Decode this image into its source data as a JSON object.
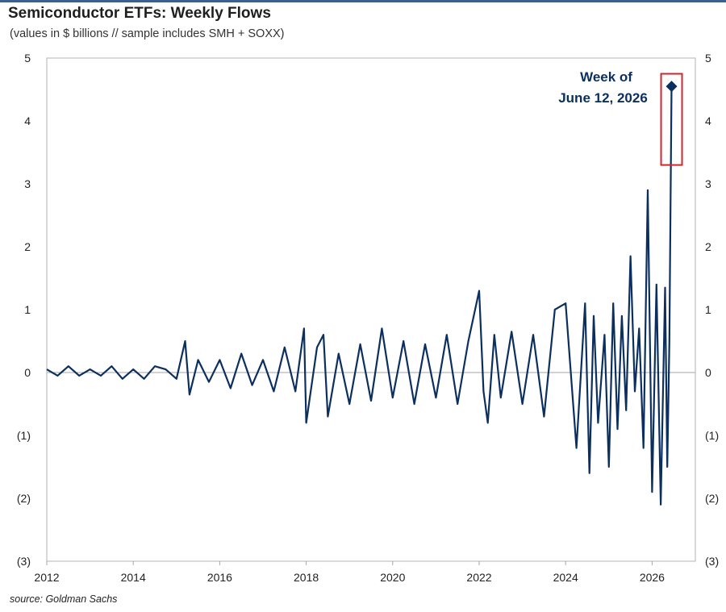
{
  "header": {
    "title": "Semiconductor ETFs: Weekly Flows",
    "subtitle": "(values in $ billions // sample includes SMH + SOXX)"
  },
  "footer": {
    "source": "source: Goldman Sachs"
  },
  "colors": {
    "line": "#0b2f5e",
    "highlight_box": "#d0262c",
    "axis": "#a6a6a6",
    "frame": "#b3b3b3",
    "top_rule": "#3b5f8f"
  },
  "chart_data": {
    "type": "line",
    "title": "Semiconductor ETFs: Weekly Flows",
    "subtitle": "(values in $ billions // sample includes SMH + SOXX)",
    "xlabel": "",
    "ylabel": "",
    "xlim": [
      2012,
      2027
    ],
    "ylim": [
      -3,
      5
    ],
    "x_ticks": [
      2012,
      2014,
      2016,
      2018,
      2020,
      2022,
      2024,
      2026
    ],
    "y_ticks": [
      5,
      4,
      3,
      2,
      1,
      0,
      -1,
      -2,
      -3
    ],
    "y_tick_labels": [
      "5",
      "4",
      "3",
      "2",
      "1",
      "0",
      "(1)",
      "(2)",
      "(3)"
    ],
    "grid": false,
    "zero_line": true,
    "dual_y_axis_labels": true,
    "series": [
      {
        "x": [
          2012.0,
          2012.25,
          2012.5,
          2012.75,
          2013.0,
          2013.25,
          2013.5,
          2013.75,
          2014.0,
          2014.25,
          2014.5,
          2014.75,
          2015.0,
          2015.2,
          2015.3,
          2015.5,
          2015.75,
          2016.0,
          2016.25,
          2016.5,
          2016.75,
          2017.0,
          2017.25,
          2017.5,
          2017.75,
          2017.95,
          2018.0,
          2018.25,
          2018.4,
          2018.5,
          2018.75,
          2019.0,
          2019.25,
          2019.5,
          2019.75,
          2020.0,
          2020.25,
          2020.5,
          2020.75,
          2021.0,
          2021.25,
          2021.5,
          2021.75,
          2022.0,
          2022.1,
          2022.2,
          2022.35,
          2022.5,
          2022.75,
          2023.0,
          2023.25,
          2023.5,
          2023.75,
          2024.0,
          2024.25,
          2024.45,
          2024.55,
          2024.65,
          2024.75,
          2024.9,
          2025.0,
          2025.1,
          2025.2,
          2025.3,
          2025.4,
          2025.5,
          2025.6,
          2025.7,
          2025.8,
          2025.9,
          2026.0,
          2026.1,
          2026.2,
          2026.3,
          2026.35,
          2026.4,
          2026.45
        ],
        "values": [
          0.05,
          -0.05,
          0.1,
          -0.05,
          0.05,
          -0.05,
          0.1,
          -0.1,
          0.05,
          -0.1,
          0.1,
          0.05,
          -0.1,
          0.5,
          -0.35,
          0.2,
          -0.15,
          0.2,
          -0.25,
          0.3,
          -0.2,
          0.2,
          -0.3,
          0.4,
          -0.3,
          0.7,
          -0.8,
          0.4,
          0.6,
          -0.7,
          0.3,
          -0.5,
          0.45,
          -0.45,
          0.7,
          -0.4,
          0.5,
          -0.5,
          0.45,
          -0.4,
          0.6,
          -0.5,
          0.5,
          1.3,
          -0.3,
          -0.8,
          0.6,
          -0.4,
          0.65,
          -0.5,
          0.6,
          -0.7,
          1.0,
          1.1,
          -1.2,
          1.1,
          -1.6,
          0.9,
          -0.8,
          0.6,
          -1.5,
          1.1,
          -0.9,
          0.9,
          -0.6,
          1.85,
          -0.3,
          0.7,
          -1.2,
          2.9,
          -1.9,
          1.4,
          -2.1,
          1.35,
          -1.5,
          0.5,
          4.55
        ]
      }
    ],
    "annotations": [
      {
        "text_line1": "Week of",
        "text_line2": "June 12, 2026",
        "x": 2026.45,
        "y": 4.55,
        "marker": "diamond",
        "box_ylim": [
          3.3,
          4.75
        ]
      }
    ]
  }
}
